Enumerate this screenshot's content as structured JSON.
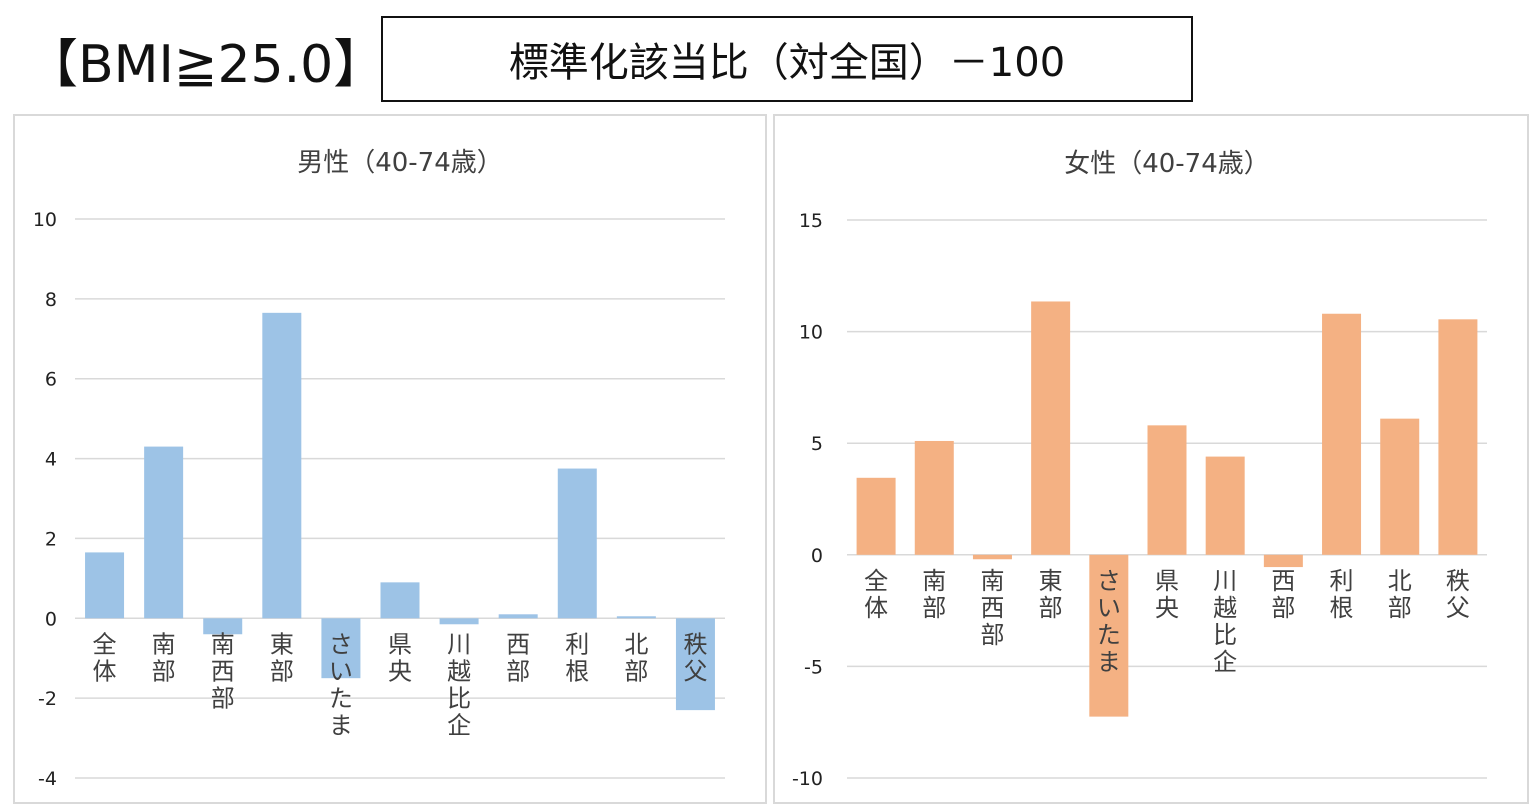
{
  "header": {
    "left_title": "【BMI≧25.0】",
    "box_title": "標準化該当比（対全国）－100"
  },
  "colors": {
    "male_bar": "#9dc3e6",
    "female_bar": "#f4b183",
    "gridline": "#d9d9d9",
    "text": "#404040"
  },
  "chart_data": [
    {
      "type": "bar",
      "title": "男性（40-74歳）",
      "categories": [
        "全体",
        "南部",
        "南西部",
        "東部",
        "さいたま",
        "県央",
        "川越比企",
        "西部",
        "利根",
        "北部",
        "秩父"
      ],
      "values": [
        1.65,
        4.3,
        -0.4,
        7.65,
        -1.5,
        0.9,
        -0.15,
        0.1,
        3.75,
        0.05,
        -2.3
      ],
      "ylim": [
        -4,
        10
      ],
      "yticks": [
        -4,
        -2,
        0,
        2,
        4,
        6,
        8,
        10
      ],
      "grid": true,
      "legend": "none"
    },
    {
      "type": "bar",
      "title": "女性（40-74歳）",
      "categories": [
        "全体",
        "南部",
        "南西部",
        "東部",
        "さいたま",
        "県央",
        "川越比企",
        "西部",
        "利根",
        "北部",
        "秩父"
      ],
      "values": [
        3.45,
        5.1,
        -0.2,
        11.35,
        -7.25,
        5.8,
        4.4,
        -0.55,
        10.8,
        6.1,
        10.55
      ],
      "ylim": [
        -10,
        15
      ],
      "yticks": [
        -10,
        -5,
        0,
        5,
        10,
        15
      ],
      "grid": true,
      "legend": "none"
    }
  ]
}
